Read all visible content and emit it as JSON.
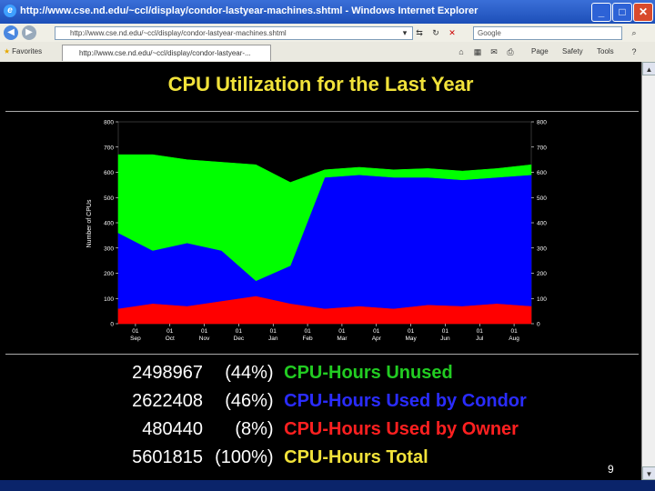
{
  "window": {
    "title": "http://www.cse.nd.edu/~ccl/display/condor-lastyear-machines.shtml - Windows Internet Explorer",
    "minimize": "_",
    "maximize": "□",
    "close": "✕"
  },
  "address_bar": {
    "url": "http://www.cse.nd.edu/~ccl/display/condor-lastyear-machines.shtml",
    "search_placeholder": "Google"
  },
  "tab_bar": {
    "favorites": "Favorites",
    "tab_title": "http://www.cse.nd.edu/~ccl/display/condor-lastyear-...",
    "page_menu": "Page",
    "safety_menu": "Safety",
    "tools_menu": "Tools"
  },
  "heading": "CPU Utilization for the Last Year",
  "stats": [
    {
      "value": "2498967",
      "percent": "(44%)",
      "label": "CPU-Hours Unused",
      "color": "#22cc22"
    },
    {
      "value": "2622408",
      "percent": "(46%)",
      "label": "CPU-Hours Used by Condor",
      "color": "#2a2cff"
    },
    {
      "value": "480440",
      "percent": "(8%)",
      "label": "CPU-Hours Used by Owner",
      "color": "#ff2020"
    },
    {
      "value": "5601815",
      "percent": "(100%)",
      "label": "CPU-Hours Total",
      "color": "#f1e23a"
    }
  ],
  "page_number": "9",
  "chart_data": {
    "type": "area",
    "ylabel": "Number of CPUs",
    "ylim": [
      0,
      800
    ],
    "yticks": [
      0,
      100,
      200,
      300,
      400,
      500,
      600,
      700,
      800
    ],
    "xticks": [
      "01 Sep",
      "01 Oct",
      "01 Nov",
      "01 Dec",
      "01 Jan",
      "01 Feb",
      "01 Mar",
      "01 Apr",
      "01 May",
      "01 Jun",
      "01 Jul",
      "01 Aug"
    ],
    "x": [
      "Aug",
      "Sep",
      "Oct",
      "Nov",
      "Dec",
      "Jan",
      "Feb",
      "Mar",
      "Apr",
      "May",
      "Jun",
      "Jul",
      "Aug"
    ],
    "series": [
      {
        "name": "CPU-Hours Used by Owner",
        "color": "#ff0000",
        "values": [
          60,
          80,
          70,
          90,
          110,
          80,
          60,
          70,
          60,
          75,
          70,
          80,
          70
        ]
      },
      {
        "name": "CPU-Hours Used by Condor",
        "color": "#0000ff",
        "values": [
          300,
          210,
          250,
          200,
          60,
          150,
          520,
          520,
          520,
          505,
          500,
          500,
          520
        ]
      },
      {
        "name": "CPU-Hours Unused",
        "color": "#00ff00",
        "values": [
          310,
          380,
          330,
          350,
          460,
          330,
          30,
          30,
          30,
          35,
          35,
          35,
          40
        ]
      }
    ]
  }
}
